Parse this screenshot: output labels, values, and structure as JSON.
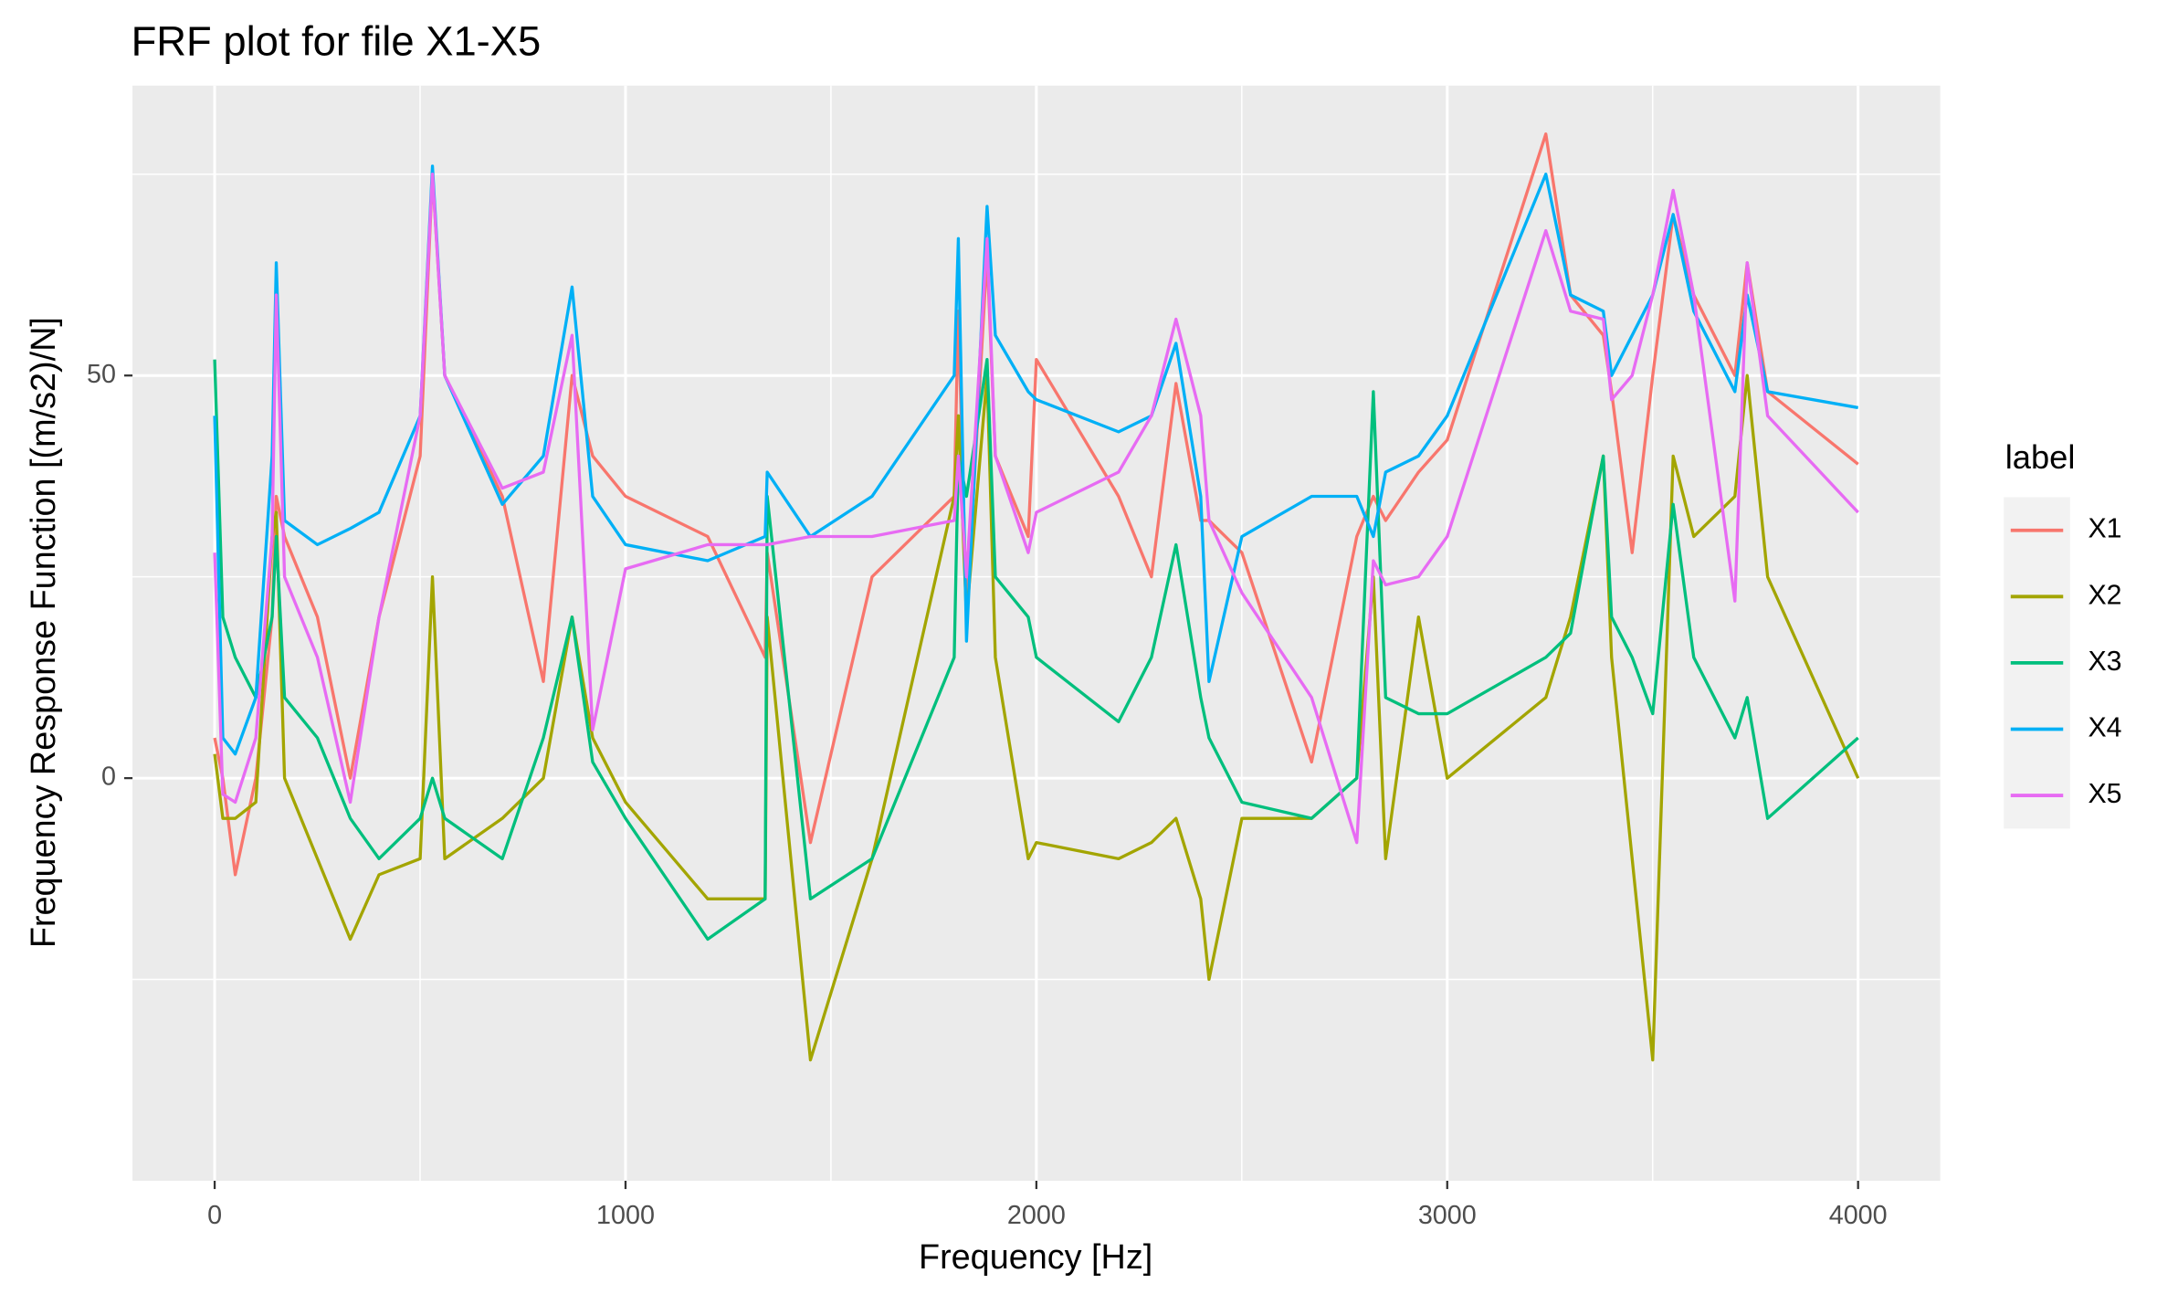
{
  "chart_data": {
    "type": "line",
    "title": "FRF plot for file X1-X5",
    "x_label": "Frequency [Hz]",
    "y_label": "Frequency Response Function [(m/s2)/N]",
    "legend_title": "label",
    "legend": "right",
    "grid": true,
    "xlim": [
      -200,
      4200
    ],
    "xticks": [
      0,
      1000,
      2000,
      3000,
      4000
    ],
    "xminor": [
      500,
      1500,
      2500,
      3500
    ],
    "ylim": [
      -50,
      86
    ],
    "yticks": [
      0,
      50
    ],
    "yminor": [
      -25,
      25,
      75
    ],
    "x": [
      0,
      20,
      50,
      100,
      140,
      150,
      170,
      250,
      330,
      400,
      500,
      530,
      560,
      700,
      800,
      870,
      920,
      1000,
      1200,
      1340,
      1345,
      1450,
      1600,
      1800,
      1810,
      1830,
      1880,
      1900,
      1980,
      2000,
      2200,
      2280,
      2340,
      2400,
      2420,
      2500,
      2670,
      2780,
      2820,
      2850,
      2930,
      3000,
      3240,
      3300,
      3380,
      3400,
      3450,
      3500,
      3550,
      3600,
      3700,
      3730,
      3780,
      4000
    ],
    "series": [
      {
        "name": "X1",
        "color": "#F8766D",
        "values": [
          5,
          0,
          -12,
          0,
          20,
          35,
          30,
          20,
          0,
          20,
          40,
          75,
          50,
          35,
          12,
          50,
          40,
          35,
          30,
          15,
          28,
          -8,
          25,
          35,
          58,
          20,
          65,
          40,
          30,
          52,
          35,
          25,
          49,
          32,
          32,
          28,
          2,
          30,
          35,
          32,
          38,
          42,
          80,
          60,
          55,
          48,
          28,
          50,
          70,
          60,
          50,
          64,
          48,
          39
        ]
      },
      {
        "name": "X2",
        "color": "#A3A500",
        "values": [
          3,
          -5,
          -5,
          -3,
          30,
          33,
          0,
          -10,
          -20,
          -12,
          -10,
          25,
          -10,
          -5,
          0,
          20,
          5,
          -3,
          -15,
          -15,
          20,
          -35,
          -10,
          35,
          45,
          20,
          50,
          15,
          -10,
          -8,
          -10,
          -8,
          -5,
          -15,
          -25,
          -5,
          -5,
          0,
          25,
          -10,
          20,
          0,
          10,
          20,
          40,
          15,
          -10,
          -35,
          40,
          30,
          35,
          50,
          25,
          0
        ]
      },
      {
        "name": "X3",
        "color": "#00BF7D",
        "values": [
          52,
          20,
          15,
          10,
          20,
          30,
          10,
          5,
          -5,
          -10,
          -5,
          0,
          -5,
          -10,
          5,
          20,
          2,
          -5,
          -20,
          -15,
          35,
          -15,
          -10,
          15,
          40,
          35,
          52,
          25,
          20,
          15,
          7,
          15,
          29,
          10,
          5,
          -3,
          -5,
          0,
          48,
          10,
          8,
          8,
          15,
          18,
          40,
          20,
          15,
          8,
          34,
          15,
          5,
          10,
          -5,
          5
        ]
      },
      {
        "name": "X4",
        "color": "#00B0F6",
        "values": [
          45,
          5,
          3,
          10,
          40,
          64,
          32,
          29,
          31,
          33,
          45,
          76,
          50,
          34,
          40,
          61,
          35,
          29,
          27,
          30,
          38,
          30,
          35,
          50,
          67,
          17,
          71,
          55,
          48,
          47,
          43,
          45,
          54,
          35,
          12,
          30,
          35,
          35,
          30,
          38,
          40,
          45,
          75,
          60,
          58,
          50,
          55,
          60,
          70,
          58,
          48,
          60,
          48,
          46
        ]
      },
      {
        "name": "X5",
        "color": "#E76BF3",
        "values": [
          28,
          -2,
          -3,
          5,
          30,
          60,
          25,
          15,
          -3,
          20,
          45,
          75,
          50,
          36,
          38,
          55,
          6,
          26,
          29,
          29,
          29,
          30,
          30,
          32,
          40,
          25,
          67,
          40,
          28,
          33,
          38,
          45,
          57,
          45,
          32,
          23,
          10,
          -8,
          27,
          24,
          25,
          30,
          68,
          58,
          57,
          47,
          50,
          60,
          73,
          60,
          22,
          64,
          45,
          33
        ]
      }
    ]
  }
}
